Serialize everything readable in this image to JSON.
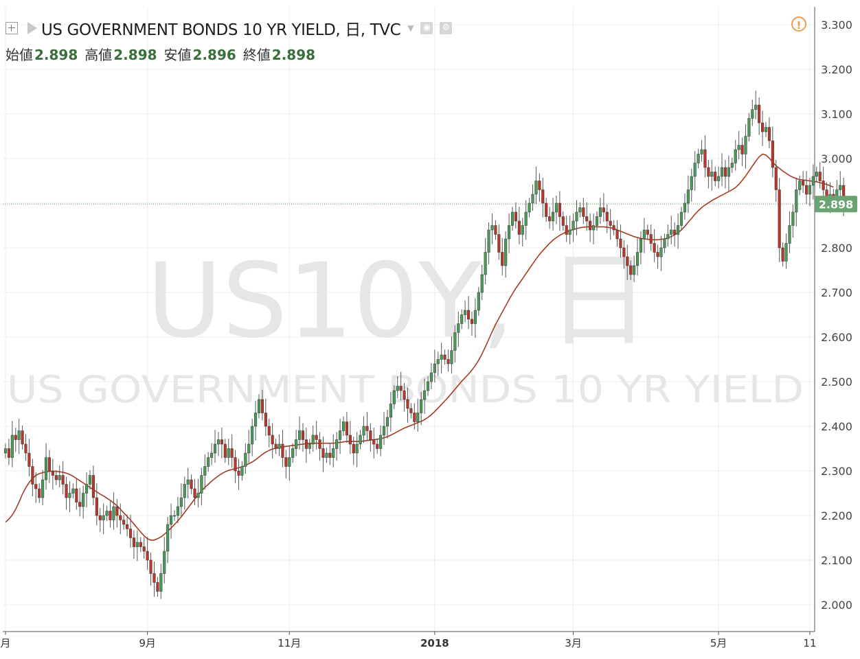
{
  "header": {
    "symbol_title": "US GOVERNMENT BONDS 10 YR YIELD, 日, TVC",
    "ohlc": [
      {
        "label": "始値",
        "value": "2.898"
      },
      {
        "label": "高値",
        "value": "2.898"
      },
      {
        "label": "安値",
        "value": "2.896"
      },
      {
        "label": "終値",
        "value": "2.898"
      }
    ]
  },
  "watermark": {
    "main": "US10Y, 日",
    "sub": "US GOVERNMENT BONDS 10 YR YIELD"
  },
  "alert_symbol": "!",
  "colors": {
    "up": "#4a9a58",
    "down": "#b9362a",
    "ma": "#a83a22",
    "price_badge": "#6aa371",
    "grid": "#ececec",
    "axis_text": "#444444"
  },
  "chart_data": {
    "type": "candlestick",
    "ylim": [
      1.94,
      3.34
    ],
    "y_ticks": [
      "2.000",
      "2.100",
      "2.200",
      "2.300",
      "2.400",
      "2.500",
      "2.600",
      "2.700",
      "2.800",
      "2.900",
      "3.000",
      "3.100",
      "3.200",
      "3.300"
    ],
    "x_ticks": [
      {
        "label": "月",
        "index": 0
      },
      {
        "label": "9月",
        "index": 42
      },
      {
        "label": "11月",
        "index": 84
      },
      {
        "label": "2018",
        "index": 127,
        "bold": true
      },
      {
        "label": "3月",
        "index": 168
      },
      {
        "label": "5月",
        "index": 211
      },
      {
        "label": "11",
        "index": 238
      }
    ],
    "last_price": "2.898",
    "last_price_value": 2.898,
    "ma_label": "",
    "closes": [
      2.35,
      2.33,
      2.38,
      2.37,
      2.39,
      2.36,
      2.34,
      2.31,
      2.27,
      2.26,
      2.24,
      2.28,
      2.33,
      2.3,
      2.29,
      2.28,
      2.29,
      2.27,
      2.24,
      2.25,
      2.26,
      2.23,
      2.22,
      2.25,
      2.27,
      2.29,
      2.24,
      2.2,
      2.19,
      2.2,
      2.21,
      2.19,
      2.22,
      2.2,
      2.19,
      2.18,
      2.17,
      2.15,
      2.13,
      2.14,
      2.13,
      2.12,
      2.1,
      2.07,
      2.05,
      2.03,
      2.07,
      2.12,
      2.18,
      2.2,
      2.2,
      2.22,
      2.24,
      2.27,
      2.28,
      2.26,
      2.24,
      2.25,
      2.29,
      2.31,
      2.33,
      2.34,
      2.36,
      2.37,
      2.36,
      2.33,
      2.35,
      2.33,
      2.3,
      2.29,
      2.31,
      2.34,
      2.36,
      2.4,
      2.43,
      2.46,
      2.43,
      2.4,
      2.38,
      2.36,
      2.35,
      2.36,
      2.33,
      2.31,
      2.33,
      2.35,
      2.37,
      2.39,
      2.37,
      2.35,
      2.36,
      2.38,
      2.37,
      2.35,
      2.33,
      2.34,
      2.33,
      2.35,
      2.37,
      2.39,
      2.41,
      2.38,
      2.36,
      2.34,
      2.36,
      2.38,
      2.4,
      2.39,
      2.37,
      2.36,
      2.35,
      2.38,
      2.4,
      2.42,
      2.45,
      2.48,
      2.49,
      2.48,
      2.46,
      2.44,
      2.43,
      2.41,
      2.43,
      2.46,
      2.48,
      2.5,
      2.52,
      2.54,
      2.55,
      2.56,
      2.55,
      2.54,
      2.57,
      2.61,
      2.63,
      2.65,
      2.66,
      2.64,
      2.63,
      2.66,
      2.7,
      2.74,
      2.79,
      2.84,
      2.85,
      2.83,
      2.79,
      2.76,
      2.82,
      2.85,
      2.88,
      2.86,
      2.83,
      2.85,
      2.88,
      2.9,
      2.92,
      2.95,
      2.93,
      2.9,
      2.87,
      2.86,
      2.88,
      2.9,
      2.87,
      2.85,
      2.83,
      2.84,
      2.86,
      2.88,
      2.89,
      2.87,
      2.86,
      2.84,
      2.85,
      2.87,
      2.89,
      2.88,
      2.86,
      2.85,
      2.84,
      2.82,
      2.8,
      2.78,
      2.76,
      2.74,
      2.76,
      2.79,
      2.82,
      2.84,
      2.83,
      2.81,
      2.79,
      2.78,
      2.8,
      2.82,
      2.83,
      2.84,
      2.83,
      2.85,
      2.88,
      2.9,
      2.93,
      2.96,
      2.99,
      3.01,
      3.02,
      2.98,
      2.96,
      2.97,
      2.95,
      2.96,
      2.98,
      2.96,
      2.98,
      2.99,
      3.02,
      3.03,
      3.01,
      3.05,
      3.09,
      3.11,
      3.12,
      3.08,
      3.06,
      3.07,
      3.04,
      2.98,
      2.93,
      2.8,
      2.77,
      2.81,
      2.85,
      2.88,
      2.93,
      2.95,
      2.94,
      2.92,
      2.94,
      2.96,
      2.97,
      2.95,
      2.93,
      2.91,
      2.92,
      2.9,
      2.93,
      2.94,
      2.898
    ],
    "ma_values": [
      2.185,
      2.192,
      2.201,
      2.214,
      2.23,
      2.248,
      2.262,
      2.274,
      2.283,
      2.29,
      2.294,
      2.296,
      2.298,
      2.299,
      2.299,
      2.299,
      2.298,
      2.297,
      2.295,
      2.292,
      2.288,
      2.283,
      2.278,
      2.273,
      2.268,
      2.263,
      2.258,
      2.253,
      2.248,
      2.244,
      2.239,
      2.234,
      2.228,
      2.222,
      2.214,
      2.206,
      2.198,
      2.19,
      2.181,
      2.172,
      2.163,
      2.155,
      2.148,
      2.145,
      2.145,
      2.148,
      2.152,
      2.158,
      2.165,
      2.172,
      2.18,
      2.188,
      2.197,
      2.207,
      2.217,
      2.227,
      2.237,
      2.246,
      2.255,
      2.263,
      2.27,
      2.277,
      2.283,
      2.289,
      2.294,
      2.298,
      2.301,
      2.303,
      2.305,
      2.307,
      2.309,
      2.312,
      2.316,
      2.32,
      2.325,
      2.331,
      2.337,
      2.342,
      2.346,
      2.349,
      2.351,
      2.353,
      2.354,
      2.355,
      2.356,
      2.357,
      2.358,
      2.359,
      2.36,
      2.361,
      2.362,
      2.362,
      2.362,
      2.362,
      2.362,
      2.362,
      2.362,
      2.362,
      2.363,
      2.364,
      2.365,
      2.366,
      2.366,
      2.366,
      2.366,
      2.366,
      2.367,
      2.368,
      2.369,
      2.37,
      2.371,
      2.372,
      2.374,
      2.377,
      2.38,
      2.384,
      2.388,
      2.392,
      2.396,
      2.399,
      2.402,
      2.405,
      2.408,
      2.411,
      2.415,
      2.42,
      2.426,
      2.433,
      2.441,
      2.449,
      2.457,
      2.465,
      2.474,
      2.483,
      2.492,
      2.501,
      2.509,
      2.517,
      2.526,
      2.536,
      2.548,
      2.562,
      2.578,
      2.595,
      2.612,
      2.628,
      2.642,
      2.656,
      2.67,
      2.684,
      2.697,
      2.709,
      2.72,
      2.731,
      2.742,
      2.753,
      2.764,
      2.775,
      2.785,
      2.794,
      2.802,
      2.81,
      2.817,
      2.823,
      2.828,
      2.832,
      2.836,
      2.839,
      2.841,
      2.843,
      2.845,
      2.846,
      2.847,
      2.847,
      2.847,
      2.847,
      2.847,
      2.847,
      2.846,
      2.845,
      2.843,
      2.84,
      2.837,
      2.834,
      2.831,
      2.828,
      2.825,
      2.823,
      2.821,
      2.82,
      2.819,
      2.818,
      2.818,
      2.818,
      2.819,
      2.82,
      2.822,
      2.825,
      2.829,
      2.834,
      2.84,
      2.848,
      2.857,
      2.866,
      2.875,
      2.883,
      2.89,
      2.896,
      2.901,
      2.906,
      2.91,
      2.914,
      2.918,
      2.922,
      2.926,
      2.93,
      2.935,
      2.942,
      2.951,
      2.961,
      2.972,
      2.983,
      2.994,
      3.004,
      3.01,
      3.008,
      3.001,
      2.992,
      2.984,
      2.978,
      2.972,
      2.967,
      2.962,
      2.958,
      2.955,
      2.953,
      2.952,
      2.951,
      2.95,
      2.949,
      2.948,
      2.946,
      2.944,
      2.942,
      2.939,
      2.936
    ]
  }
}
